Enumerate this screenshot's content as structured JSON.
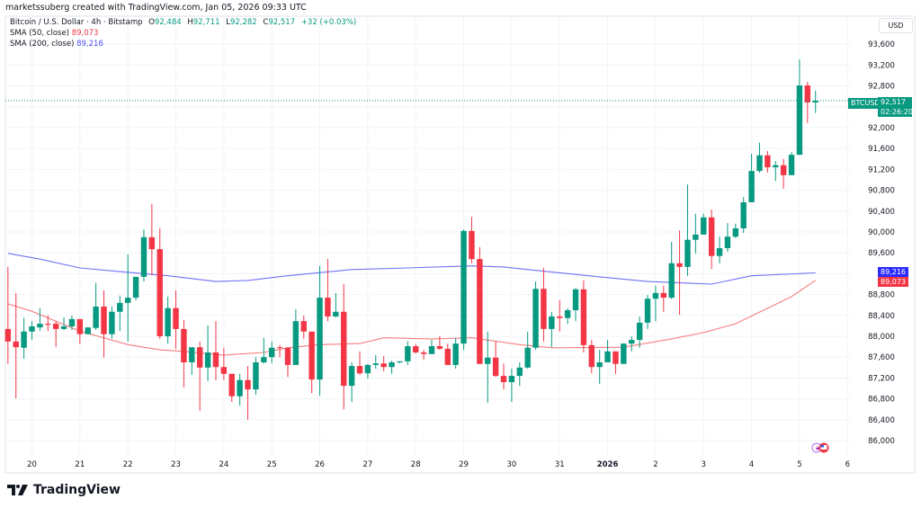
{
  "header": {
    "attribution": "marketssuberg created with TradingView.com, Jan 05, 2026 09:33 UTC",
    "symbol_line": "Bitcoin / U.S. Dollar · 4h · Bitstamp",
    "ohlc": {
      "o_label": "O",
      "o": "92,484",
      "h_label": "H",
      "h": "92,711",
      "l_label": "L",
      "l": "92,282",
      "c_label": "C",
      "c": "92,517",
      "change": "+32 (+0.03%)"
    },
    "sma50": {
      "label": "SMA (50, close)",
      "value": "89,073"
    },
    "sma200": {
      "label": "SMA (200, close)",
      "value": "89,216"
    }
  },
  "price_axis": {
    "currency": "USD"
  },
  "tags": {
    "symbol": "BTCUSD",
    "last_price": "92,517",
    "countdown": "02:26:20",
    "sma200": "89,216",
    "sma50": "89,073"
  },
  "logo": {
    "text": "TradingView"
  },
  "colors": {
    "up": "#089981",
    "down": "#f23645",
    "sma50": "#f77c80",
    "sma200": "#7070f5",
    "sma200_tag": "#2c2cff",
    "grid": "#f0f3fa"
  },
  "chart_data": {
    "type": "candlestick",
    "interval": "4h",
    "grid": true,
    "ylim": [
      85800,
      93900
    ],
    "y_ticks": [
      86000,
      86400,
      86800,
      87200,
      87600,
      88000,
      88400,
      88800,
      89200,
      89600,
      90000,
      90400,
      90800,
      91200,
      91600,
      92000,
      92400,
      92800,
      93200,
      93600
    ],
    "y_tick_labels": [
      "86,000",
      "86,400",
      "86,800",
      "87,200",
      "87,600",
      "88,000",
      "88,400",
      "88,800",
      "",
      "89,600",
      "90,000",
      "90,400",
      "90,800",
      "91,200",
      "91,600",
      "92,000",
      "",
      "92,800",
      "93,200",
      "93,600"
    ],
    "x_ticks": [
      {
        "label": "20",
        "t": "2025-12-20T00:00"
      },
      {
        "label": "21",
        "t": "2025-12-21T00:00"
      },
      {
        "label": "22",
        "t": "2025-12-22T00:00"
      },
      {
        "label": "23",
        "t": "2025-12-23T00:00"
      },
      {
        "label": "24",
        "t": "2025-12-24T00:00"
      },
      {
        "label": "25",
        "t": "2025-12-25T00:00"
      },
      {
        "label": "26",
        "t": "2025-12-26T00:00"
      },
      {
        "label": "27",
        "t": "2025-12-27T00:00"
      },
      {
        "label": "28",
        "t": "2025-12-28T00:00"
      },
      {
        "label": "29",
        "t": "2025-12-29T00:00"
      },
      {
        "label": "30",
        "t": "2025-12-30T00:00"
      },
      {
        "label": "31",
        "t": "2025-12-31T00:00"
      },
      {
        "label": "2026",
        "t": "2026-01-01T00:00",
        "bold": true
      },
      {
        "label": "2",
        "t": "2026-01-02T00:00"
      },
      {
        "label": "3",
        "t": "2026-01-03T00:00"
      },
      {
        "label": "4",
        "t": "2026-01-04T00:00"
      },
      {
        "label": "5",
        "t": "2026-01-05T00:00"
      },
      {
        "label": "6",
        "t": "2026-01-06T00:00"
      }
    ],
    "last_price": 92517,
    "candles_columns": [
      "time",
      "open",
      "high",
      "low",
      "close"
    ],
    "candles": [
      [
        "2025-12-19T12:00",
        88140,
        89330,
        87470,
        87900
      ],
      [
        "2025-12-19T16:00",
        87900,
        88830,
        86810,
        87790
      ],
      [
        "2025-12-19T20:00",
        87780,
        88350,
        87570,
        88090
      ],
      [
        "2025-12-20T00:00",
        88090,
        88290,
        87930,
        88190
      ],
      [
        "2025-12-20T04:00",
        88170,
        88540,
        88100,
        88240
      ],
      [
        "2025-12-20T08:00",
        88240,
        88400,
        88100,
        88220
      ],
      [
        "2025-12-20T12:00",
        88240,
        88280,
        87790,
        88140
      ],
      [
        "2025-12-20T16:00",
        88140,
        88360,
        88120,
        88190
      ],
      [
        "2025-12-20T20:00",
        88190,
        88400,
        88120,
        88330
      ],
      [
        "2025-12-21T00:00",
        88330,
        88330,
        87850,
        88040
      ],
      [
        "2025-12-21T04:00",
        88040,
        88170,
        88040,
        88170
      ],
      [
        "2025-12-21T08:00",
        88160,
        89020,
        88120,
        88570
      ],
      [
        "2025-12-21T12:00",
        88570,
        88880,
        87590,
        88040
      ],
      [
        "2025-12-21T16:00",
        88040,
        88570,
        87950,
        88470
      ],
      [
        "2025-12-21T20:00",
        88470,
        88780,
        88100,
        88640
      ],
      [
        "2025-12-22T00:00",
        88640,
        89570,
        87900,
        88740
      ],
      [
        "2025-12-22T04:00",
        88740,
        89140,
        88690,
        89140
      ],
      [
        "2025-12-22T08:00",
        89140,
        90050,
        89050,
        89900
      ],
      [
        "2025-12-22T12:00",
        89900,
        90540,
        89170,
        89670
      ],
      [
        "2025-12-22T16:00",
        89670,
        90070,
        87950,
        88000
      ],
      [
        "2025-12-22T20:00",
        88000,
        88760,
        87860,
        88540
      ],
      [
        "2025-12-23T00:00",
        88540,
        88880,
        87760,
        88140
      ],
      [
        "2025-12-23T04:00",
        88140,
        88310,
        87020,
        87500
      ],
      [
        "2025-12-23T08:00",
        87500,
        87790,
        87260,
        87790
      ],
      [
        "2025-12-23T12:00",
        87790,
        87900,
        86570,
        87400
      ],
      [
        "2025-12-23T16:00",
        87400,
        88210,
        87140,
        87690
      ],
      [
        "2025-12-23T20:00",
        87690,
        88290,
        87160,
        87410
      ],
      [
        "2025-12-24T00:00",
        87410,
        87780,
        87160,
        87280
      ],
      [
        "2025-12-24T04:00",
        87280,
        87280,
        86740,
        86850
      ],
      [
        "2025-12-24T08:00",
        86850,
        87280,
        86670,
        87160
      ],
      [
        "2025-12-24T12:00",
        87160,
        87430,
        86400,
        86980
      ],
      [
        "2025-12-24T16:00",
        86980,
        87600,
        86880,
        87500
      ],
      [
        "2025-12-24T20:00",
        87500,
        87970,
        87480,
        87600
      ],
      [
        "2025-12-25T00:00",
        87600,
        87900,
        87480,
        87780
      ],
      [
        "2025-12-25T04:00",
        87790,
        87830,
        87600,
        87780
      ],
      [
        "2025-12-25T08:00",
        87780,
        87790,
        87220,
        87450
      ],
      [
        "2025-12-25T12:00",
        87450,
        88520,
        87450,
        88290
      ],
      [
        "2025-12-25T16:00",
        88290,
        88400,
        87950,
        88090
      ],
      [
        "2025-12-25T20:00",
        88090,
        88090,
        86910,
        87170
      ],
      [
        "2025-12-26T00:00",
        87170,
        89350,
        86860,
        88740
      ],
      [
        "2025-12-26T04:00",
        88740,
        89480,
        88290,
        88380
      ],
      [
        "2025-12-26T08:00",
        88380,
        88830,
        88360,
        88470
      ],
      [
        "2025-12-26T12:00",
        88470,
        89000,
        86600,
        87050
      ],
      [
        "2025-12-26T16:00",
        87050,
        87500,
        86740,
        87430
      ],
      [
        "2025-12-26T20:00",
        87430,
        87710,
        87260,
        87290
      ],
      [
        "2025-12-27T00:00",
        87290,
        87470,
        87190,
        87450
      ],
      [
        "2025-12-27T04:00",
        87450,
        87640,
        87380,
        87480
      ],
      [
        "2025-12-27T08:00",
        87480,
        87620,
        87330,
        87410
      ],
      [
        "2025-12-27T12:00",
        87410,
        87530,
        87280,
        87500
      ],
      [
        "2025-12-27T16:00",
        87500,
        87520,
        87480,
        87520
      ],
      [
        "2025-12-27T20:00",
        87520,
        87910,
        87450,
        87810
      ],
      [
        "2025-12-28T00:00",
        87810,
        87850,
        87670,
        87690
      ],
      [
        "2025-12-28T04:00",
        87690,
        87740,
        87550,
        87660
      ],
      [
        "2025-12-28T08:00",
        87660,
        87930,
        87650,
        87810
      ],
      [
        "2025-12-28T12:00",
        87810,
        88000,
        87740,
        87760
      ],
      [
        "2025-12-28T16:00",
        87760,
        87860,
        87450,
        87450
      ],
      [
        "2025-12-28T20:00",
        87450,
        87970,
        87380,
        87860
      ],
      [
        "2025-12-29T00:00",
        87860,
        90050,
        87740,
        90020
      ],
      [
        "2025-12-29T04:00",
        90020,
        90290,
        89400,
        89480
      ],
      [
        "2025-12-29T08:00",
        89480,
        89710,
        87470,
        87470
      ],
      [
        "2025-12-29T12:00",
        87470,
        88090,
        86720,
        87590
      ],
      [
        "2025-12-29T16:00",
        87590,
        87900,
        87220,
        87240
      ],
      [
        "2025-12-29T20:00",
        87240,
        87480,
        86980,
        87120
      ],
      [
        "2025-12-30T00:00",
        87120,
        87380,
        86740,
        87240
      ],
      [
        "2025-12-30T04:00",
        87240,
        87500,
        87050,
        87400
      ],
      [
        "2025-12-30T08:00",
        87400,
        88090,
        87380,
        87780
      ],
      [
        "2025-12-30T12:00",
        87780,
        89050,
        87740,
        88910
      ],
      [
        "2025-12-30T16:00",
        88910,
        89310,
        87900,
        88140
      ],
      [
        "2025-12-30T20:00",
        88140,
        88470,
        87790,
        88380
      ],
      [
        "2025-12-31T00:00",
        88380,
        88690,
        88090,
        88350
      ],
      [
        "2025-12-31T04:00",
        88350,
        88540,
        88240,
        88500
      ],
      [
        "2025-12-31T08:00",
        88500,
        88930,
        88290,
        88900
      ],
      [
        "2025-12-31T12:00",
        88900,
        89070,
        87690,
        87830
      ],
      [
        "2025-12-31T16:00",
        87830,
        87930,
        87290,
        87410
      ],
      [
        "2025-12-31T20:00",
        87410,
        87740,
        87090,
        87500
      ],
      [
        "2026-01-01T00:00",
        87500,
        87930,
        87500,
        87710
      ],
      [
        "2026-01-01T04:00",
        87710,
        87710,
        87280,
        87470
      ],
      [
        "2026-01-01T08:00",
        87470,
        87860,
        87470,
        87860
      ],
      [
        "2026-01-01T12:00",
        87860,
        88000,
        87710,
        87930
      ],
      [
        "2026-01-01T16:00",
        87930,
        88380,
        87780,
        88260
      ],
      [
        "2026-01-01T20:00",
        88260,
        88790,
        88140,
        88720
      ],
      [
        "2026-01-02T00:00",
        88720,
        88970,
        88290,
        88830
      ],
      [
        "2026-01-02T04:00",
        88830,
        88970,
        88470,
        88740
      ],
      [
        "2026-01-02T08:00",
        88740,
        89810,
        88710,
        89400
      ],
      [
        "2026-01-02T12:00",
        89400,
        90030,
        88410,
        89330
      ],
      [
        "2026-01-02T16:00",
        89330,
        90910,
        89160,
        89850
      ],
      [
        "2026-01-02T20:00",
        89850,
        90350,
        89590,
        89950
      ],
      [
        "2026-01-03T00:00",
        89950,
        90350,
        89950,
        90280
      ],
      [
        "2026-01-03T04:00",
        90280,
        90430,
        89290,
        89540
      ],
      [
        "2026-01-03T08:00",
        89540,
        89910,
        89400,
        89690
      ],
      [
        "2026-01-03T12:00",
        89690,
        90170,
        89620,
        89910
      ],
      [
        "2026-01-03T16:00",
        89910,
        90160,
        89880,
        90070
      ],
      [
        "2026-01-03T20:00",
        90070,
        90670,
        89980,
        90570
      ],
      [
        "2026-01-04T00:00",
        90570,
        91500,
        90570,
        91170
      ],
      [
        "2026-01-04T04:00",
        91170,
        91710,
        91140,
        91470
      ],
      [
        "2026-01-04T08:00",
        91470,
        91550,
        91140,
        91240
      ],
      [
        "2026-01-04T12:00",
        91240,
        91360,
        90980,
        91280
      ],
      [
        "2026-01-04T16:00",
        91280,
        91400,
        90830,
        91090
      ],
      [
        "2026-01-04T20:00",
        91090,
        91530,
        91090,
        91480
      ],
      [
        "2026-01-05T00:00",
        91480,
        93310,
        91480,
        92810
      ],
      [
        "2026-01-05T04:00",
        92810,
        92880,
        92090,
        92484
      ],
      [
        "2026-01-05T08:00",
        92484,
        92711,
        92282,
        92517
      ]
    ],
    "series": [
      {
        "name": "SMA (50, close)",
        "points": [
          [
            "2025-12-19T12:00",
            88620
          ],
          [
            "2025-12-20T00:00",
            88480
          ],
          [
            "2025-12-20T12:00",
            88290
          ],
          [
            "2025-12-21T00:00",
            88100
          ],
          [
            "2025-12-22T00:00",
            87840
          ],
          [
            "2025-12-22T16:00",
            87740
          ],
          [
            "2025-12-23T00:00",
            87720
          ],
          [
            "2025-12-24T00:00",
            87640
          ],
          [
            "2025-12-24T20:00",
            87690
          ],
          [
            "2025-12-25T08:00",
            87780
          ],
          [
            "2025-12-26T00:00",
            87840
          ],
          [
            "2025-12-26T20:00",
            87860
          ],
          [
            "2025-12-27T08:00",
            87970
          ],
          [
            "2025-12-28T08:00",
            87950
          ],
          [
            "2025-12-29T04:00",
            87970
          ],
          [
            "2025-12-30T04:00",
            87840
          ],
          [
            "2025-12-30T20:00",
            87780
          ],
          [
            "2026-01-01T08:00",
            87790
          ],
          [
            "2026-01-02T08:00",
            87950
          ],
          [
            "2026-01-03T00:00",
            88070
          ],
          [
            "2026-01-03T16:00",
            88240
          ],
          [
            "2026-01-04T20:00",
            88760
          ],
          [
            "2026-01-05T08:00",
            89073
          ]
        ]
      },
      {
        "name": "SMA (200, close)",
        "points": [
          [
            "2025-12-19T12:00",
            89590
          ],
          [
            "2025-12-20T04:00",
            89480
          ],
          [
            "2025-12-21T00:00",
            89310
          ],
          [
            "2025-12-21T20:00",
            89240
          ],
          [
            "2025-12-22T20:00",
            89160
          ],
          [
            "2025-12-23T20:00",
            89050
          ],
          [
            "2025-12-24T12:00",
            89070
          ],
          [
            "2025-12-25T08:00",
            89160
          ],
          [
            "2025-12-26T16:00",
            89280
          ],
          [
            "2025-12-27T20:00",
            89310
          ],
          [
            "2025-12-29T04:00",
            89350
          ],
          [
            "2025-12-29T20:00",
            89330
          ],
          [
            "2025-12-30T08:00",
            89280
          ],
          [
            "2025-12-31T20:00",
            89140
          ],
          [
            "2026-01-01T20:00",
            89050
          ],
          [
            "2026-01-03T04:00",
            89000
          ],
          [
            "2026-01-04T00:00",
            89160
          ],
          [
            "2026-01-05T08:00",
            89216
          ]
        ]
      }
    ]
  }
}
